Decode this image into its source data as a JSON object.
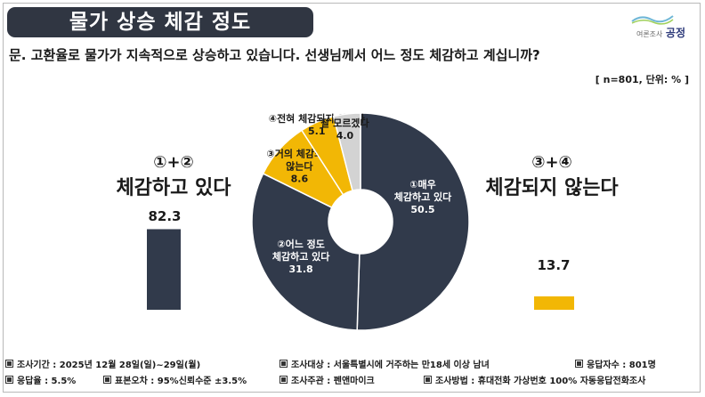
{
  "title": "물가 상승 체감 정도",
  "logo": {
    "small": "여론조사",
    "brand": "공정"
  },
  "question": "문. 고환율로 물가가 지속적으로 상승하고 있습니다. 선생님께서 어느 정도 체감하고 계십니까?",
  "sample_note": "[ n=801, 단위: % ]",
  "groups": {
    "left": {
      "num": "①+②",
      "text": "체감하고 있다",
      "value": "82.3"
    },
    "right": {
      "num": "③+④",
      "text": "체감되지 않는다",
      "value": "13.7"
    }
  },
  "colors": {
    "navy": "#313a4b",
    "yellow": "#f2b705",
    "gray": "#d3d3d3"
  },
  "chart_data": {
    "type": "pie",
    "style": "donut",
    "slices": [
      {
        "label_lines": [
          "①매우",
          "체감하고 있다"
        ],
        "value": 50.5,
        "value_label": "50.5",
        "color": "#313a4b"
      },
      {
        "label_lines": [
          "②어느 정도",
          "체감하고 있다"
        ],
        "value": 31.8,
        "value_label": "31.8",
        "color": "#313a4b"
      },
      {
        "label_lines": [
          "③거의 체감되지",
          "않는다"
        ],
        "value": 8.6,
        "value_label": "8.6",
        "color": "#f2b705"
      },
      {
        "label_lines": [
          "④전혀 체감되지 않는다"
        ],
        "value": 5.1,
        "value_label": "5.1",
        "color": "#f2b705"
      },
      {
        "label_lines": [
          "잘 모르겠다"
        ],
        "value": 4.0,
        "value_label": "4.0",
        "color": "#d3d3d3"
      }
    ],
    "summary_bars": [
      {
        "name": "①+② 체감하고 있다",
        "value": 82.3,
        "color": "#313a4b"
      },
      {
        "name": "③+④ 체감되지 않는다",
        "value": 13.7,
        "color": "#f2b705"
      }
    ]
  },
  "footer": {
    "row1": [
      "조사기간 : 2025년 12월 28일(일)~29일(월)",
      "조사대상 : 서울특별시에 거주하는 만18세 이상 남녀",
      "응답자수 : 801명"
    ],
    "row2": [
      "응답율 : 5.5%",
      "표본오차 : 95%신뢰수준 ±3.5%",
      "조사주관 : 펜앤마이크",
      "조사방법 : 휴대전화 가상번호 100% 자동응답전화조사"
    ]
  }
}
